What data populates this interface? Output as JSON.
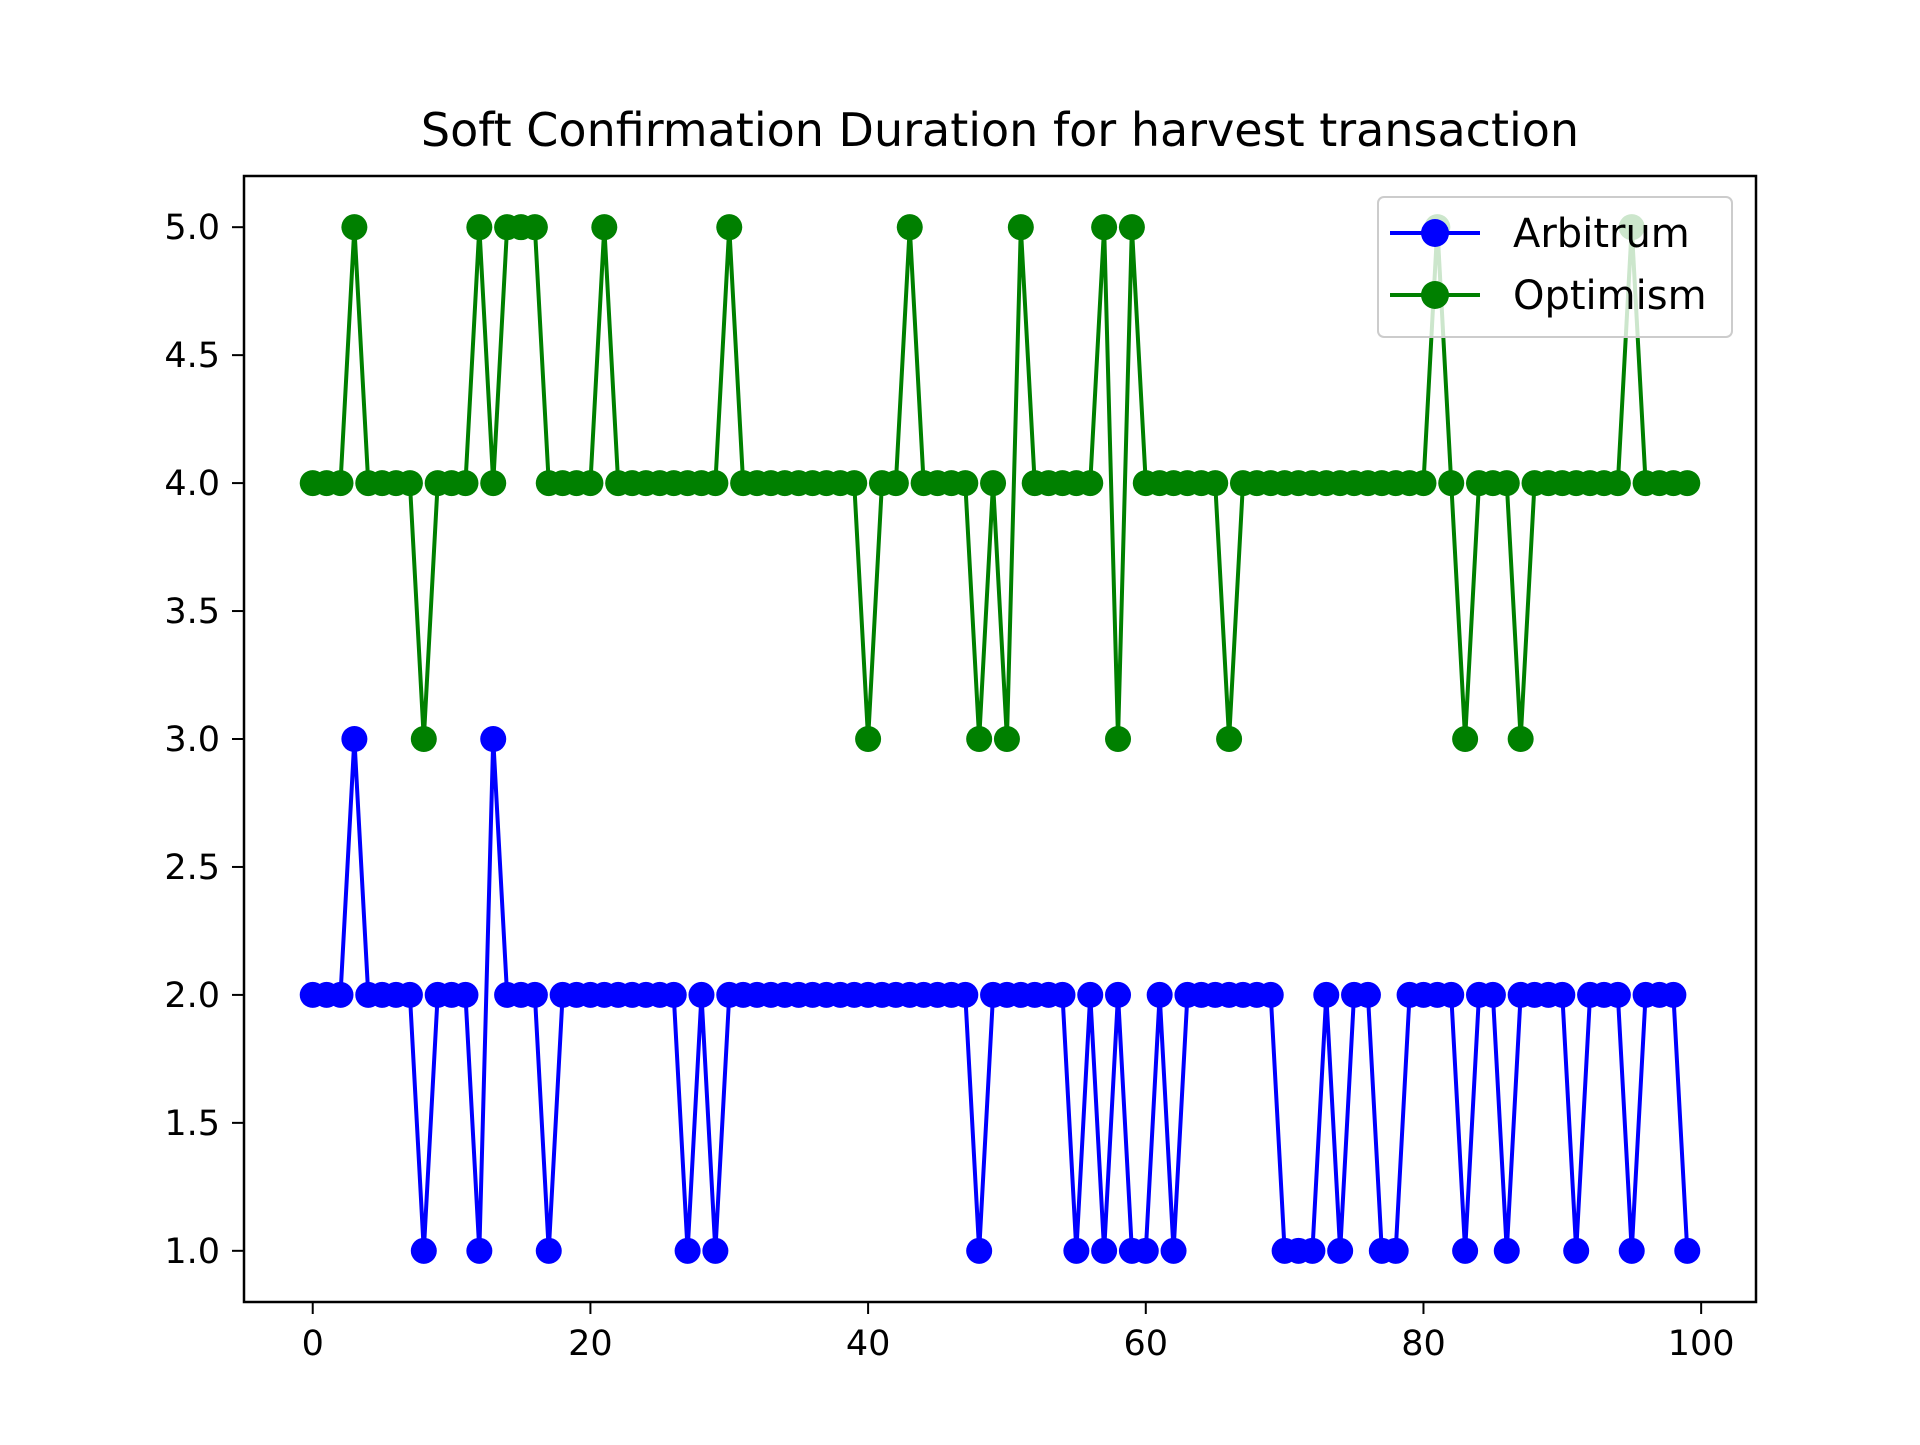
{
  "chart_data": {
    "type": "line",
    "title": "Soft Confirmation Duration for harvest transaction",
    "xlabel": "",
    "ylabel": "",
    "xlim": [
      -4.95,
      103.95
    ],
    "ylim": [
      0.8,
      5.2
    ],
    "xticks": [
      0,
      20,
      40,
      60,
      80,
      100
    ],
    "yticks": [
      1.0,
      1.5,
      2.0,
      2.5,
      3.0,
      3.5,
      4.0,
      4.5,
      5.0
    ],
    "xtick_labels": [
      "0",
      "20",
      "40",
      "60",
      "80",
      "100"
    ],
    "ytick_labels": [
      "1.0",
      "1.5",
      "2.0",
      "2.5",
      "3.0",
      "3.5",
      "4.0",
      "4.5",
      "5.0"
    ],
    "grid": false,
    "legend_position": "top-right",
    "x": [
      0,
      1,
      2,
      3,
      4,
      5,
      6,
      7,
      8,
      9,
      10,
      11,
      12,
      13,
      14,
      15,
      16,
      17,
      18,
      19,
      20,
      21,
      22,
      23,
      24,
      25,
      26,
      27,
      28,
      29,
      30,
      31,
      32,
      33,
      34,
      35,
      36,
      37,
      38,
      39,
      40,
      41,
      42,
      43,
      44,
      45,
      46,
      47,
      48,
      49,
      50,
      51,
      52,
      53,
      54,
      55,
      56,
      57,
      58,
      59,
      60,
      61,
      62,
      63,
      64,
      65,
      66,
      67,
      68,
      69,
      70,
      71,
      72,
      73,
      74,
      75,
      76,
      77,
      78,
      79,
      80,
      81,
      82,
      83,
      84,
      85,
      86,
      87,
      88,
      89,
      90,
      91,
      92,
      93,
      94,
      95,
      96,
      97,
      98,
      99
    ],
    "series": [
      {
        "name": "Arbitrum",
        "color": "#0000ff",
        "values": [
          2,
          2,
          2,
          3,
          2,
          2,
          2,
          2,
          1,
          2,
          2,
          2,
          1,
          3,
          2,
          2,
          2,
          1,
          2,
          2,
          2,
          2,
          2,
          2,
          2,
          2,
          2,
          1,
          2,
          1,
          2,
          2,
          2,
          2,
          2,
          2,
          2,
          2,
          2,
          2,
          2,
          2,
          2,
          2,
          2,
          2,
          2,
          2,
          1,
          2,
          2,
          2,
          2,
          2,
          2,
          1,
          2,
          1,
          2,
          1,
          1,
          2,
          1,
          2,
          2,
          2,
          2,
          2,
          2,
          2,
          1,
          1,
          1,
          2,
          1,
          2,
          2,
          1,
          1,
          2,
          2,
          2,
          2,
          1,
          2,
          2,
          1,
          2,
          2,
          2,
          2,
          1,
          2,
          2,
          2,
          1,
          2,
          2,
          2,
          1
        ]
      },
      {
        "name": "Optimism",
        "color": "#008000",
        "values": [
          4,
          4,
          4,
          5,
          4,
          4,
          4,
          4,
          3,
          4,
          4,
          4,
          5,
          4,
          5,
          5,
          5,
          4,
          4,
          4,
          4,
          5,
          4,
          4,
          4,
          4,
          4,
          4,
          4,
          4,
          5,
          4,
          4,
          4,
          4,
          4,
          4,
          4,
          4,
          4,
          3,
          4,
          4,
          5,
          4,
          4,
          4,
          4,
          3,
          4,
          3,
          5,
          4,
          4,
          4,
          4,
          4,
          5,
          3,
          5,
          4,
          4,
          4,
          4,
          4,
          4,
          3,
          4,
          4,
          4,
          4,
          4,
          4,
          4,
          4,
          4,
          4,
          4,
          4,
          4,
          4,
          5,
          4,
          3,
          4,
          4,
          4,
          3,
          4,
          4,
          4,
          4,
          4,
          4,
          4,
          5,
          4,
          4,
          4,
          4
        ]
      }
    ]
  }
}
